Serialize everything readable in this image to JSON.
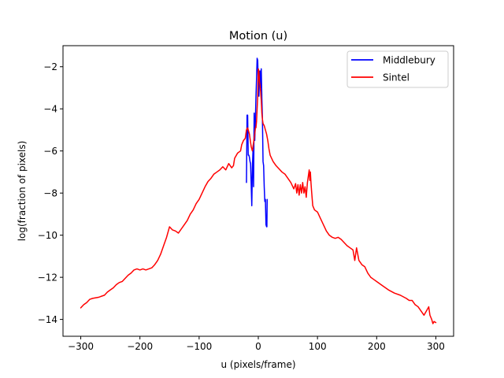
{
  "chart_data": {
    "type": "line",
    "title": "Motion (u)",
    "xlabel": "u (pixels/frame)",
    "ylabel": "log(fraction of pixels)",
    "xlim": [
      -330,
      330
    ],
    "ylim": [
      -14.8,
      -1.0
    ],
    "xticks": [
      -300,
      -200,
      -100,
      0,
      100,
      200,
      300
    ],
    "yticks": [
      -14,
      -12,
      -10,
      -8,
      -6,
      -4,
      -2
    ],
    "xtick_labels": [
      "−300",
      "−200",
      "−100",
      "0",
      "100",
      "200",
      "300"
    ],
    "ytick_labels": [
      "−14",
      "−12",
      "−10",
      "−8",
      "−6",
      "−4",
      "−2"
    ],
    "grid": false,
    "legend_position": "top-right",
    "series": [
      {
        "name": "Middlebury",
        "color": "#0000ff",
        "points": [
          [
            -20,
            -7.5
          ],
          [
            -19,
            -4.3
          ],
          [
            -18,
            -4.3
          ],
          [
            -17,
            -6.2
          ],
          [
            -16,
            -6.2
          ],
          [
            -15,
            -6.3
          ],
          [
            -14,
            -6.5
          ],
          [
            -13,
            -6.6
          ],
          [
            -12,
            -7.6
          ],
          [
            -11,
            -8.6
          ],
          [
            -10,
            -6.8
          ],
          [
            -9,
            -6.0
          ],
          [
            -8,
            -7.7
          ],
          [
            -7,
            -4.2
          ],
          [
            -6,
            -5.5
          ],
          [
            -5,
            -4.6
          ],
          [
            -4,
            -3.5
          ],
          [
            -3,
            -2.6
          ],
          [
            -2,
            -1.6
          ],
          [
            -1,
            -1.7
          ],
          [
            0,
            -2.8
          ],
          [
            1,
            -3.4
          ],
          [
            2,
            -2.5
          ],
          [
            3,
            -2.2
          ],
          [
            4,
            -3.0
          ],
          [
            5,
            -2.1
          ],
          [
            6,
            -3.5
          ],
          [
            7,
            -4.5
          ],
          [
            8,
            -6.5
          ],
          [
            9,
            -6.7
          ],
          [
            10,
            -7.7
          ],
          [
            11,
            -8.4
          ],
          [
            12,
            -8.3
          ],
          [
            13,
            -9.5
          ],
          [
            14,
            -9.6
          ],
          [
            14.5,
            -9.6
          ],
          [
            15,
            -8.3
          ]
        ]
      },
      {
        "name": "Sintel",
        "color": "#ff0000",
        "points": [
          [
            -300,
            -13.45
          ],
          [
            -295,
            -13.3
          ],
          [
            -290,
            -13.2
          ],
          [
            -285,
            -13.05
          ],
          [
            -280,
            -13.0
          ],
          [
            -270,
            -12.95
          ],
          [
            -260,
            -12.85
          ],
          [
            -255,
            -12.7
          ],
          [
            -250,
            -12.6
          ],
          [
            -245,
            -12.5
          ],
          [
            -240,
            -12.35
          ],
          [
            -235,
            -12.25
          ],
          [
            -230,
            -12.2
          ],
          [
            -225,
            -12.05
          ],
          [
            -220,
            -11.9
          ],
          [
            -215,
            -11.8
          ],
          [
            -210,
            -11.65
          ],
          [
            -205,
            -11.6
          ],
          [
            -200,
            -11.65
          ],
          [
            -195,
            -11.6
          ],
          [
            -190,
            -11.65
          ],
          [
            -185,
            -11.6
          ],
          [
            -180,
            -11.55
          ],
          [
            -175,
            -11.4
          ],
          [
            -170,
            -11.2
          ],
          [
            -165,
            -10.9
          ],
          [
            -160,
            -10.5
          ],
          [
            -155,
            -10.1
          ],
          [
            -150,
            -9.6
          ],
          [
            -145,
            -9.75
          ],
          [
            -140,
            -9.8
          ],
          [
            -135,
            -9.9
          ],
          [
            -130,
            -9.7
          ],
          [
            -125,
            -9.5
          ],
          [
            -120,
            -9.3
          ],
          [
            -115,
            -9.0
          ],
          [
            -110,
            -8.8
          ],
          [
            -105,
            -8.5
          ],
          [
            -100,
            -8.3
          ],
          [
            -95,
            -8.0
          ],
          [
            -90,
            -7.7
          ],
          [
            -85,
            -7.45
          ],
          [
            -80,
            -7.3
          ],
          [
            -75,
            -7.1
          ],
          [
            -70,
            -7.0
          ],
          [
            -65,
            -6.9
          ],
          [
            -60,
            -6.75
          ],
          [
            -55,
            -6.9
          ],
          [
            -50,
            -6.6
          ],
          [
            -45,
            -6.8
          ],
          [
            -42,
            -6.7
          ],
          [
            -40,
            -6.35
          ],
          [
            -35,
            -6.1
          ],
          [
            -30,
            -6.0
          ],
          [
            -28,
            -5.7
          ],
          [
            -25,
            -5.5
          ],
          [
            -22,
            -5.4
          ],
          [
            -20,
            -5.0
          ],
          [
            -18,
            -4.9
          ],
          [
            -15,
            -5.2
          ],
          [
            -12,
            -5.8
          ],
          [
            -10,
            -6.0
          ],
          [
            -8,
            -5.6
          ],
          [
            -6,
            -5.2
          ],
          [
            -5,
            -4.9
          ],
          [
            -4,
            -4.9
          ],
          [
            -3,
            -4.6
          ],
          [
            -2,
            -4.0
          ],
          [
            -1,
            -3.4
          ],
          [
            0,
            -2.1
          ],
          [
            1,
            -2.2
          ],
          [
            2,
            -2.7
          ],
          [
            3,
            -2.9
          ],
          [
            4,
            -3.2
          ],
          [
            5,
            -3.6
          ],
          [
            6,
            -4.2
          ],
          [
            7,
            -4.5
          ],
          [
            8,
            -4.7
          ],
          [
            10,
            -4.8
          ],
          [
            12,
            -5.0
          ],
          [
            14,
            -5.2
          ],
          [
            16,
            -5.5
          ],
          [
            18,
            -5.9
          ],
          [
            20,
            -6.2
          ],
          [
            25,
            -6.5
          ],
          [
            30,
            -6.7
          ],
          [
            35,
            -6.85
          ],
          [
            40,
            -7.0
          ],
          [
            45,
            -7.1
          ],
          [
            50,
            -7.3
          ],
          [
            55,
            -7.5
          ],
          [
            60,
            -7.8
          ],
          [
            63,
            -7.55
          ],
          [
            65,
            -8.0
          ],
          [
            67,
            -7.6
          ],
          [
            69,
            -8.1
          ],
          [
            71,
            -7.6
          ],
          [
            73,
            -8.0
          ],
          [
            75,
            -7.5
          ],
          [
            77,
            -8.0
          ],
          [
            79,
            -7.7
          ],
          [
            81,
            -8.2
          ],
          [
            83,
            -7.5
          ],
          [
            85,
            -7.1
          ],
          [
            86,
            -6.9
          ],
          [
            87,
            -7.4
          ],
          [
            88,
            -7.0
          ],
          [
            89,
            -7.5
          ],
          [
            90,
            -7.9
          ],
          [
            92,
            -8.6
          ],
          [
            95,
            -8.8
          ],
          [
            100,
            -8.9
          ],
          [
            105,
            -9.2
          ],
          [
            110,
            -9.5
          ],
          [
            115,
            -9.8
          ],
          [
            120,
            -10.0
          ],
          [
            125,
            -10.1
          ],
          [
            130,
            -10.15
          ],
          [
            135,
            -10.1
          ],
          [
            140,
            -10.2
          ],
          [
            145,
            -10.35
          ],
          [
            150,
            -10.5
          ],
          [
            155,
            -10.6
          ],
          [
            160,
            -10.7
          ],
          [
            163,
            -11.2
          ],
          [
            166,
            -10.6
          ],
          [
            170,
            -11.2
          ],
          [
            175,
            -11.4
          ],
          [
            180,
            -11.5
          ],
          [
            185,
            -11.8
          ],
          [
            190,
            -12.0
          ],
          [
            195,
            -12.1
          ],
          [
            200,
            -12.2
          ],
          [
            210,
            -12.4
          ],
          [
            220,
            -12.6
          ],
          [
            230,
            -12.75
          ],
          [
            240,
            -12.85
          ],
          [
            250,
            -13.0
          ],
          [
            255,
            -13.1
          ],
          [
            260,
            -13.1
          ],
          [
            265,
            -13.3
          ],
          [
            270,
            -13.4
          ],
          [
            275,
            -13.6
          ],
          [
            280,
            -13.8
          ],
          [
            285,
            -13.55
          ],
          [
            288,
            -13.4
          ],
          [
            290,
            -13.8
          ],
          [
            293,
            -14.0
          ],
          [
            295,
            -14.2
          ],
          [
            297,
            -14.1
          ],
          [
            300,
            -14.15
          ]
        ]
      }
    ]
  }
}
